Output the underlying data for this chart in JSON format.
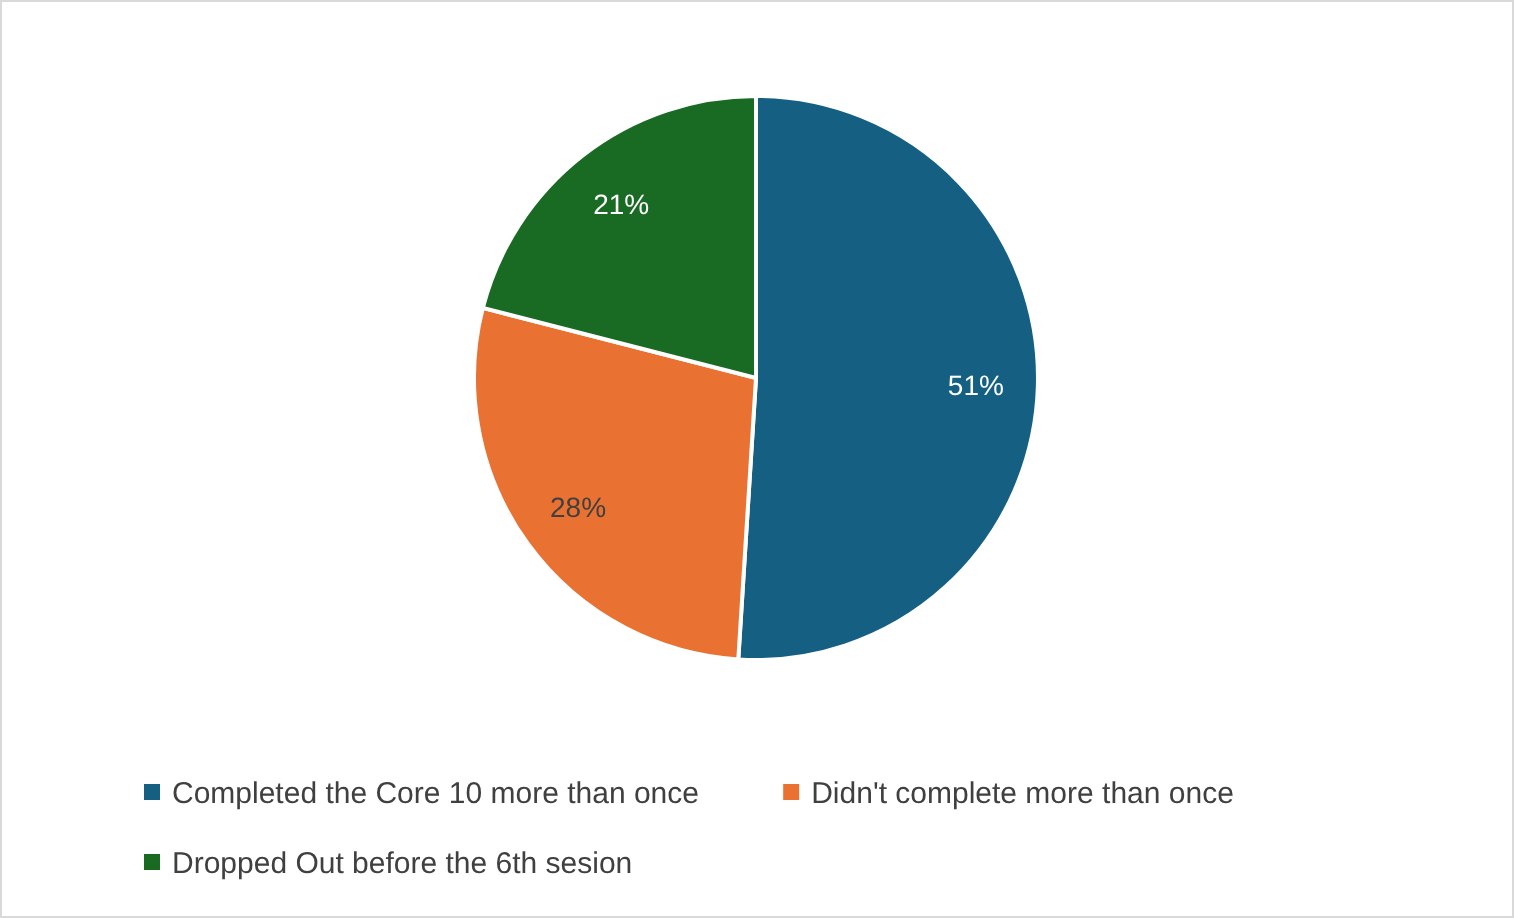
{
  "chart_data": {
    "type": "pie",
    "categories": [
      "Completed the Core 10 more than once",
      "Didn't complete more than once",
      "Dropped Out before the 6th sesion"
    ],
    "values": [
      51,
      28,
      21
    ],
    "colors": [
      "#156082",
      "#e97132",
      "#196b24"
    ],
    "value_labels": [
      "51%",
      "28%",
      "21%"
    ],
    "legend": "bottom"
  }
}
